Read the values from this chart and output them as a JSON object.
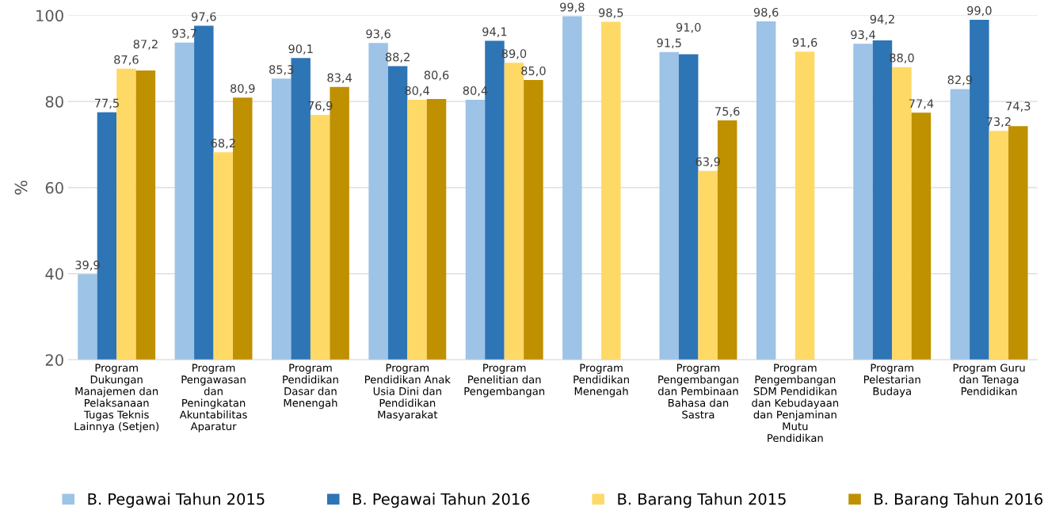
{
  "chart_data": {
    "type": "bar",
    "ylabel": "%",
    "categories": [
      "Program\nDukungan\nManajemen dan\nPelaksanaan\nTugas Teknis\nLainnya (Setjen)",
      "Program\nPengawasan\ndan\nPeningkatan\nAkuntabilitas\nAparatur",
      "Program\nPendidikan\nDasar dan\nMenengah",
      "Program\nPendidikan Anak\nUsia Dini dan\nPendidikan\nMasyarakat",
      "Program\nPenelitian dan\nPengembangan",
      "Program\nPendidikan\nMenengah",
      "Program\nPengembangan\ndan Pembinaan\nBahasa dan\nSastra",
      "Program\nPengembangan\nSDM Pendidikan\ndan Kebudayaan\ndan Penjaminan\nMutu\nPendidikan",
      "Program\nPelestarian\nBudaya",
      "Program Guru\ndan Tenaga\nPendidikan"
    ],
    "series": [
      {
        "name": "B. Pegawai Tahun 2015",
        "color": "#9dc3e6",
        "values": [
          39.9,
          93.7,
          85.3,
          93.6,
          80.4,
          99.8,
          91.5,
          98.6,
          93.4,
          82.9
        ],
        "value_labels": [
          "39,9",
          "93,7",
          "85,3",
          "93,6",
          "80,4",
          "99,8",
          "91,5",
          "98,6",
          "93,4",
          "82,9"
        ]
      },
      {
        "name": "B. Pegawai Tahun 2016",
        "color": "#2e75b6",
        "values": [
          77.5,
          97.6,
          90.1,
          88.2,
          94.1,
          null,
          91.0,
          null,
          94.2,
          99.0
        ],
        "value_labels": [
          "77,5",
          "97,6",
          "90,1",
          "88,2",
          "94,1",
          null,
          "91,0",
          null,
          "94,2",
          "99,0"
        ]
      },
      {
        "name": "B. Barang Tahun 2015",
        "color": "#ffd966",
        "values": [
          87.6,
          68.2,
          76.9,
          80.4,
          89.0,
          98.5,
          63.9,
          91.6,
          88.0,
          73.2
        ],
        "value_labels": [
          "87,6",
          "68,2",
          "76,9",
          "80,4",
          "89,0",
          "98,5",
          "63,9",
          "91,6",
          "88,0",
          "73,2"
        ]
      },
      {
        "name": "B. Barang Tahun 2016",
        "color": "#bf9000",
        "values": [
          87.2,
          80.9,
          83.4,
          80.6,
          85.0,
          null,
          75.6,
          null,
          77.4,
          74.3
        ],
        "value_labels": [
          "87,2",
          "80,9",
          "83,4",
          "80,6",
          "85,0",
          null,
          "75,6",
          null,
          "77,4",
          "74,3"
        ]
      }
    ],
    "ylim": [
      20,
      100
    ],
    "yticks": [
      20,
      40,
      60,
      80,
      100
    ],
    "grid": "y",
    "legend": "bottom"
  }
}
